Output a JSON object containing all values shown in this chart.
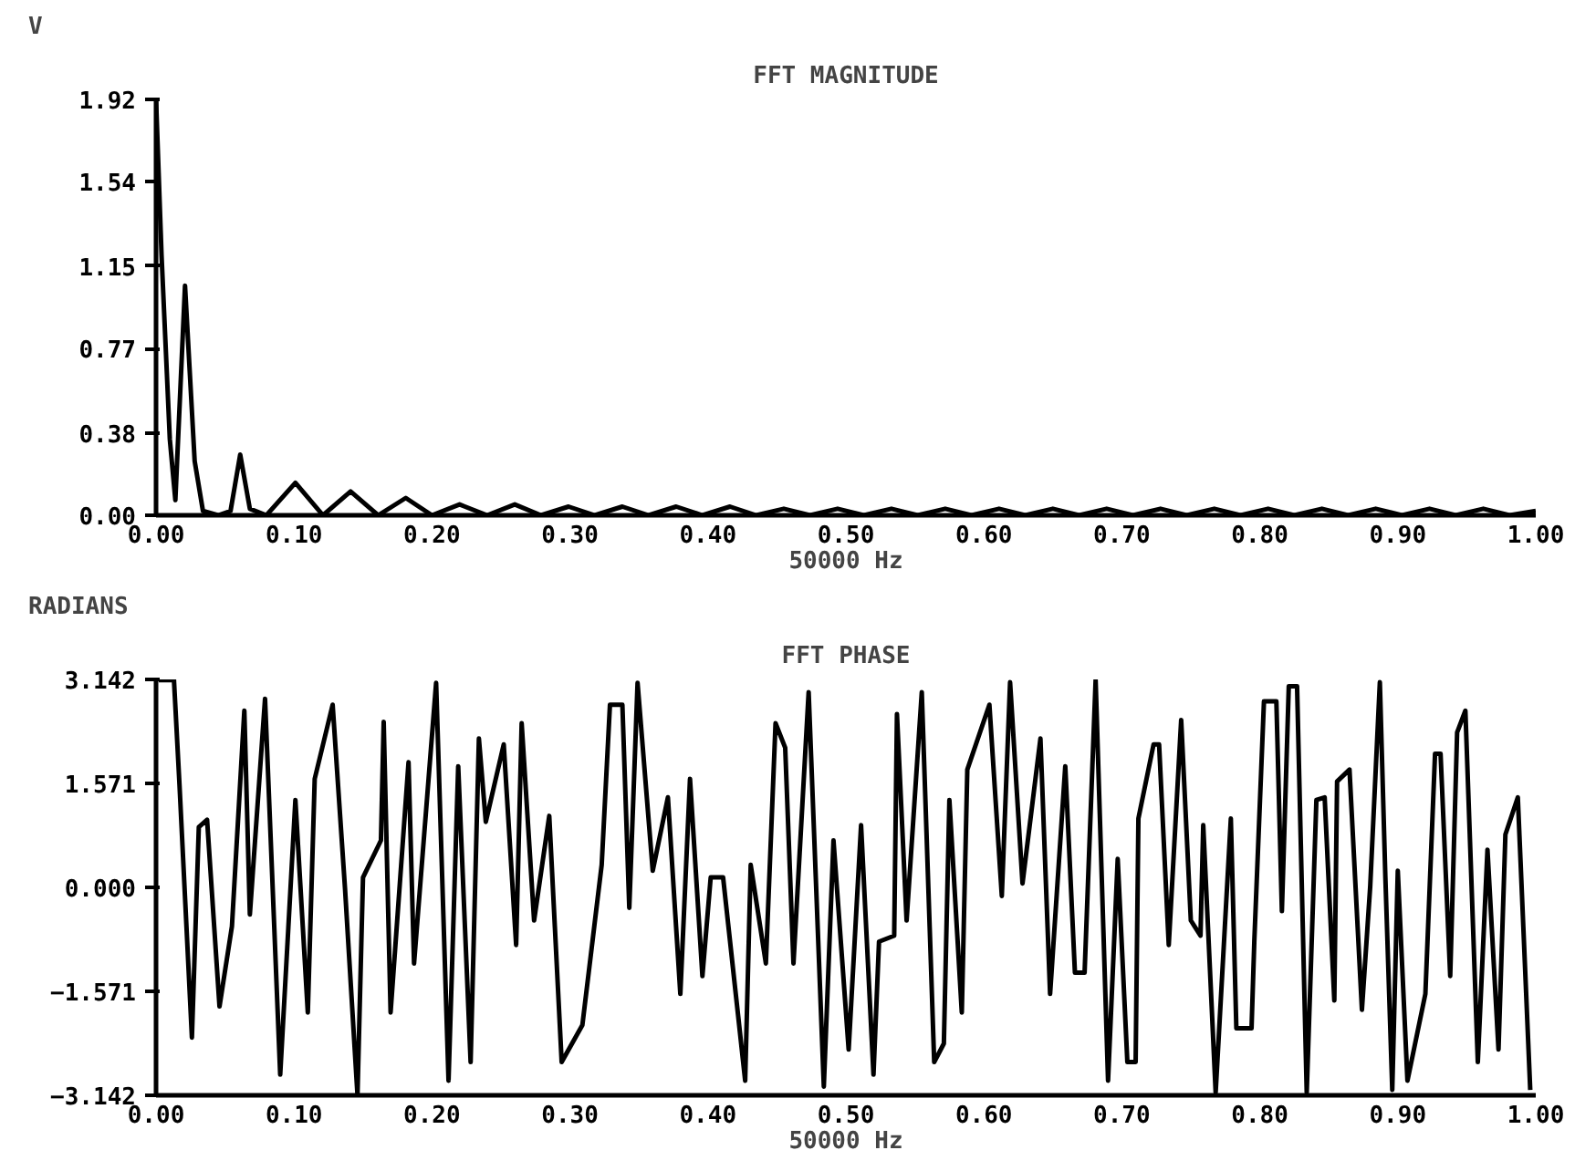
{
  "chart_data": [
    {
      "type": "line",
      "title": "FFT MAGNITUDE",
      "ylabel": "V",
      "xlabel": "50000 Hz",
      "color": "#000000",
      "x": [
        0,
        0.004,
        0.01,
        0.014,
        0.021,
        0.028,
        0.034,
        0.045,
        0.054,
        0.061,
        0.068,
        0.08,
        0.101,
        0.121,
        0.141,
        0.161,
        0.181,
        0.2,
        0.22,
        0.24,
        0.26,
        0.279,
        0.299,
        0.318,
        0.338,
        0.357,
        0.377,
        0.396,
        0.416,
        0.435,
        0.455,
        0.474,
        0.494,
        0.513,
        0.533,
        0.552,
        0.572,
        0.591,
        0.611,
        0.63,
        0.65,
        0.669,
        0.689,
        0.708,
        0.728,
        0.747,
        0.767,
        0.786,
        0.806,
        0.825,
        0.845,
        0.864,
        0.884,
        0.903,
        0.923,
        0.942,
        0.962,
        0.981,
        1.0
      ],
      "values": [
        1.92,
        1.2,
        0.35,
        0.07,
        1.06,
        0.25,
        0.02,
        0.0,
        0.02,
        0.28,
        0.03,
        0.0,
        0.15,
        0.0,
        0.11,
        0.0,
        0.08,
        0.0,
        0.05,
        0.0,
        0.05,
        0.0,
        0.04,
        0.0,
        0.04,
        0.0,
        0.04,
        0.0,
        0.04,
        0.0,
        0.03,
        0.0,
        0.03,
        0.0,
        0.03,
        0.0,
        0.03,
        0.0,
        0.03,
        0.0,
        0.03,
        0.0,
        0.03,
        0.0,
        0.03,
        0.0,
        0.03,
        0.0,
        0.03,
        0.0,
        0.03,
        0.0,
        0.03,
        0.0,
        0.03,
        0.0,
        0.03,
        0.0,
        0.02
      ],
      "xlim": [
        0,
        1
      ],
      "ylim": [
        0,
        1.92
      ],
      "xticks": [
        {
          "value": 0,
          "label": "0.00"
        },
        {
          "value": 0.1,
          "label": "0.10"
        },
        {
          "value": 0.2,
          "label": "0.20"
        },
        {
          "value": 0.3,
          "label": "0.30"
        },
        {
          "value": 0.4,
          "label": "0.40"
        },
        {
          "value": 0.5,
          "label": "0.50"
        },
        {
          "value": 0.6,
          "label": "0.60"
        },
        {
          "value": 0.7,
          "label": "0.70"
        },
        {
          "value": 0.8,
          "label": "0.80"
        },
        {
          "value": 0.9,
          "label": "0.90"
        },
        {
          "value": 1,
          "label": "1.00"
        }
      ],
      "yticks": [
        {
          "value": 0,
          "label": "0.00"
        },
        0.38,
        0.77,
        1.15,
        1.54,
        1.92
      ]
    },
    {
      "type": "line",
      "title": "FFT PHASE",
      "ylabel": "RADIANS",
      "xlabel": "50000 Hz",
      "color": "#000000",
      "x": [
        0.002,
        0.013,
        0.017,
        0.026,
        0.031,
        0.037,
        0.046,
        0.055,
        0.064,
        0.068,
        0.079,
        0.09,
        0.101,
        0.11,
        0.115,
        0.128,
        0.137,
        0.146,
        0.15,
        0.163,
        0.165,
        0.17,
        0.183,
        0.187,
        0.203,
        0.212,
        0.219,
        0.228,
        0.234,
        0.239,
        0.252,
        0.261,
        0.265,
        0.274,
        0.285,
        0.294,
        0.309,
        0.323,
        0.329,
        0.338,
        0.343,
        0.349,
        0.36,
        0.371,
        0.38,
        0.387,
        0.396,
        0.402,
        0.411,
        0.427,
        0.431,
        0.442,
        0.449,
        0.456,
        0.462,
        0.473,
        0.484,
        0.491,
        0.502,
        0.511,
        0.52,
        0.524,
        0.535,
        0.537,
        0.544,
        0.555,
        0.564,
        0.571,
        0.575,
        0.584,
        0.588,
        0.604,
        0.613,
        0.619,
        0.628,
        0.641,
        0.648,
        0.659,
        0.666,
        0.673,
        0.681,
        0.69,
        0.697,
        0.704,
        0.71,
        0.712,
        0.723,
        0.727,
        0.734,
        0.743,
        0.75,
        0.757,
        0.759,
        0.768,
        0.779,
        0.783,
        0.794,
        0.796,
        0.803,
        0.812,
        0.816,
        0.821,
        0.827,
        0.834,
        0.841,
        0.847,
        0.854,
        0.856,
        0.865,
        0.874,
        0.88,
        0.887,
        0.891,
        0.896,
        0.9,
        0.907,
        0.92,
        0.927,
        0.931,
        0.938,
        0.943,
        0.949,
        0.958,
        0.965,
        0.973,
        0.978,
        0.987,
        0.996
      ],
      "values": [
        3.13,
        3.13,
        1.55,
        -2.27,
        0.91,
        1.02,
        -1.8,
        -0.59,
        2.67,
        -0.41,
        2.85,
        -2.83,
        1.32,
        -1.89,
        1.64,
        2.76,
        -0.03,
        -3.14,
        0.15,
        0.71,
        2.5,
        -1.89,
        1.89,
        -1.15,
        3.09,
        -2.92,
        1.83,
        -2.64,
        2.25,
        0.99,
        2.16,
        -0.87,
        2.48,
        -0.5,
        1.08,
        -2.64,
        -2.08,
        0.34,
        2.76,
        2.76,
        -0.31,
        3.09,
        0.25,
        1.36,
        -1.61,
        1.64,
        -1.34,
        0.15,
        0.15,
        -2.92,
        0.34,
        -1.15,
        2.48,
        2.11,
        -1.15,
        2.95,
        -3.01,
        0.71,
        -2.45,
        0.94,
        -2.83,
        -0.82,
        -0.73,
        2.62,
        -0.5,
        2.95,
        -2.64,
        -2.36,
        1.32,
        -1.89,
        1.78,
        2.76,
        -0.13,
        3.1,
        0.06,
        2.25,
        -1.61,
        1.83,
        -1.29,
        -1.29,
        3.13,
        -2.92,
        0.43,
        -2.64,
        -2.64,
        1.04,
        2.16,
        2.16,
        -0.87,
        2.53,
        -0.5,
        -0.73,
        0.94,
        -3.1,
        1.04,
        -2.13,
        -2.13,
        -0.82,
        2.81,
        2.81,
        -0.36,
        3.04,
        3.04,
        -3.1,
        1.32,
        1.36,
        -1.71,
        1.6,
        1.78,
        -1.85,
        0.01,
        3.1,
        0.15,
        -3.06,
        0.25,
        -2.92,
        -1.61,
        2.02,
        2.02,
        -1.34,
        2.34,
        2.67,
        -2.64,
        0.57,
        -2.45,
        0.8,
        1.36,
        -3.06
      ],
      "xlim": [
        0,
        1
      ],
      "ylim": [
        -3.142,
        3.142
      ],
      "xticks": [
        {
          "value": 0,
          "label": "0.00"
        },
        {
          "value": 0.1,
          "label": "0.10"
        },
        {
          "value": 0.2,
          "label": "0.20"
        },
        {
          "value": 0.3,
          "label": "0.30"
        },
        {
          "value": 0.4,
          "label": "0.40"
        },
        {
          "value": 0.5,
          "label": "0.50"
        },
        {
          "value": 0.6,
          "label": "0.60"
        },
        {
          "value": 0.7,
          "label": "0.70"
        },
        {
          "value": 0.8,
          "label": "0.80"
        },
        {
          "value": 0.9,
          "label": "0.90"
        },
        {
          "value": 1,
          "label": "1.00"
        }
      ],
      "yticks": [
        -3.142,
        -1.571,
        {
          "value": 0,
          "label": "0.000"
        },
        1.571,
        3.142
      ]
    }
  ]
}
